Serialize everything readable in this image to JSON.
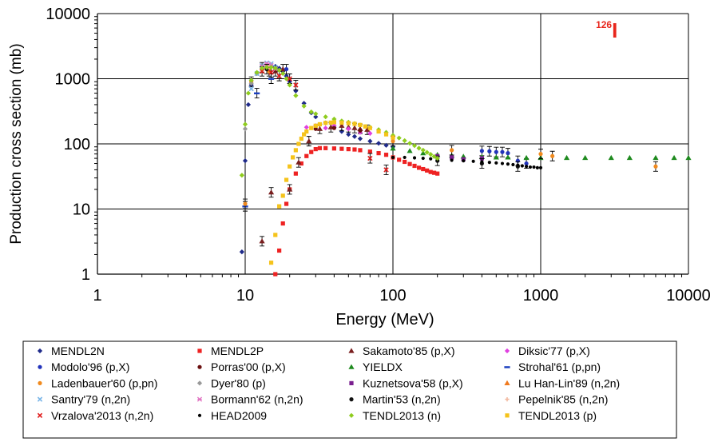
{
  "chart_data": {
    "type": "scatter",
    "title": "",
    "annotation": {
      "mass": "126",
      "element": "I",
      "color": "#e8261c"
    },
    "xlabel": "Energy (MeV)",
    "ylabel": "Production cross section (mb)",
    "xscale": "log",
    "yscale": "log",
    "xlim": [
      1,
      10000
    ],
    "ylim": [
      1,
      10000
    ],
    "grid": true,
    "legend_position": "bottom",
    "x_ticks": [
      "1",
      "10",
      "100",
      "1000",
      "10000"
    ],
    "y_ticks": [
      "1",
      "10",
      "100",
      "1000",
      "10000"
    ],
    "series": [
      {
        "name": "MENDL2N",
        "color": "#1f2a8a",
        "marker": "diamond",
        "x": [
          9.5,
          10,
          10.5,
          11,
          12,
          13,
          14,
          15,
          16,
          17,
          18,
          19,
          20,
          22,
          25,
          28,
          30,
          35,
          40,
          45,
          50,
          55,
          60,
          70,
          80,
          90,
          100
        ],
        "y": [
          2.2,
          55,
          400,
          800,
          1200,
          1500,
          1600,
          1600,
          1550,
          1450,
          1300,
          1100,
          900,
          650,
          420,
          300,
          260,
          210,
          180,
          155,
          140,
          130,
          120,
          110,
          102,
          95,
          90
        ]
      },
      {
        "name": "MENDL2P",
        "color": "#ee2222",
        "marker": "square",
        "x": [
          16,
          17,
          18,
          19,
          20,
          22,
          24,
          26,
          28,
          30,
          32,
          35,
          40,
          45,
          50,
          55,
          60,
          70,
          80,
          90,
          100,
          110,
          120,
          130,
          140,
          150,
          160,
          170,
          180,
          190,
          200
        ],
        "y": [
          1,
          2.3,
          6,
          12,
          20,
          35,
          50,
          65,
          75,
          83,
          86,
          86,
          85,
          84,
          83,
          82,
          80,
          76,
          72,
          68,
          62,
          57,
          53,
          49,
          46,
          43,
          41,
          39,
          37,
          36,
          35
        ]
      },
      {
        "name": "Sakamoto'85 (p,X)",
        "color": "#7a1f1f",
        "marker": "triangle",
        "x": [
          13,
          15,
          16,
          18,
          20,
          23,
          27,
          32,
          38,
          45,
          50,
          55,
          60,
          67
        ],
        "y": [
          3.2,
          18,
          1300,
          1400,
          20,
          52,
          110,
          170,
          180,
          190,
          180,
          175,
          170,
          165
        ]
      },
      {
        "name": "Diksic'77 (p,X)",
        "color": "#e040e0",
        "marker": "diamond",
        "x": [
          26,
          30,
          35,
          40,
          50,
          60,
          70
        ],
        "y": [
          180,
          190,
          175,
          190,
          170,
          150,
          145
        ]
      },
      {
        "name": "Modolo'96 (p,X)",
        "color": "#2233bb",
        "marker": "circle",
        "x": [
          19,
          400,
          450,
          500,
          550,
          600,
          700,
          800
        ],
        "y": [
          1400,
          78,
          77,
          75,
          75,
          72,
          55,
          50
        ]
      },
      {
        "name": "Porras'00 (p,X)",
        "color": "#6a0f0f",
        "marker": "circle",
        "x": [
          16,
          30,
          40,
          60
        ],
        "y": [
          1350,
          170,
          175,
          160
        ]
      },
      {
        "name": "YIELDX",
        "color": "#1e8a1e",
        "marker": "triangle",
        "x": [
          100,
          130,
          160,
          200,
          250,
          300,
          400,
          500,
          600,
          800,
          1000,
          1500,
          2000,
          3000,
          4000,
          6000,
          8000,
          10000
        ],
        "y": [
          85,
          78,
          72,
          68,
          66,
          64,
          63,
          62,
          62,
          61,
          61,
          61,
          61,
          61,
          61,
          61,
          61,
          61
        ]
      },
      {
        "name": "Strohal'61 (p,pn)",
        "color": "#1a3fbf",
        "marker": "dash",
        "x": [
          10,
          12,
          15
        ],
        "y": [
          11,
          600,
          1000
        ]
      },
      {
        "name": "Ladenbauer'60 (p,pn)",
        "color": "#f08a1e",
        "marker": "circle",
        "x": [
          10,
          11,
          13,
          14.5,
          100,
          250,
          1000,
          1200,
          6000
        ],
        "y": [
          12,
          900,
          1500,
          1300,
          110,
          80,
          70,
          65,
          45
        ]
      },
      {
        "name": "Dyer'80 (p)",
        "color": "#999999",
        "marker": "diamond",
        "x": [
          10,
          11,
          12
        ],
        "y": [
          170,
          850,
          1200
        ]
      },
      {
        "name": "Kuznetsova'58 (p,X)",
        "color": "#7a1f8f",
        "marker": "square",
        "x": [
          200,
          250,
          300,
          400
        ],
        "y": [
          65,
          62,
          58,
          60
        ]
      },
      {
        "name": "Lu Han-Lin'89 (n,2n)",
        "color": "#f07a1e",
        "marker": "triangle",
        "x": [
          14,
          14.5
        ],
        "y": [
          1550,
          1450
        ]
      },
      {
        "name": "Santry'79 (n,2n)",
        "color": "#7ab6e8",
        "marker": "x",
        "x": [
          11,
          12,
          13,
          14,
          15,
          16
        ],
        "y": [
          700,
          1200,
          1600,
          1750,
          1700,
          1500
        ]
      },
      {
        "name": "Bormann'62 (n,2n)",
        "color": "#e070c0",
        "marker": "star",
        "x": [
          13,
          14,
          14.5,
          15,
          16
        ],
        "y": [
          1550,
          1700,
          1650,
          1600,
          1400
        ]
      },
      {
        "name": "Martin'53 (n,2n)",
        "color": "#111111",
        "marker": "circle",
        "x": [
          14,
          200,
          400,
          700
        ],
        "y": [
          1400,
          55,
          50,
          45
        ]
      },
      {
        "name": "Pepelnik'85 (n,2n)",
        "color": "#f2b9a0",
        "marker": "plus",
        "x": [
          14,
          14.5
        ],
        "y": [
          1500,
          1500
        ]
      },
      {
        "name": "Vrzalova'2013 (n,2n)",
        "color": "#e01a1a",
        "marker": "x",
        "x": [
          13,
          15,
          17,
          20,
          22,
          70,
          90
        ],
        "y": [
          1300,
          1250,
          1100,
          1000,
          800,
          60,
          40
        ]
      },
      {
        "name": "HEAD2009",
        "color": "#000000",
        "marker": "dot",
        "x": [
          100,
          120,
          140,
          160,
          180,
          200,
          250,
          300,
          350,
          400,
          450,
          500,
          550,
          600,
          650,
          700,
          750,
          800,
          850,
          900,
          950,
          1000
        ],
        "y": [
          62,
          62,
          61,
          60,
          59,
          58,
          56,
          55,
          54,
          53,
          52,
          51,
          50,
          49,
          48,
          47,
          46,
          45,
          44,
          44,
          43,
          43
        ]
      },
      {
        "name": "TENDL2013 (n)",
        "color": "#8fcc1e",
        "marker": "diamond",
        "x": [
          9.5,
          10,
          10.5,
          11,
          12,
          13,
          14,
          15,
          16,
          17,
          18,
          19,
          20,
          22,
          25,
          28,
          30,
          35,
          40,
          45,
          50,
          55,
          60,
          70,
          80,
          90,
          100,
          110,
          120,
          130,
          140,
          150,
          160,
          170,
          180,
          190,
          200
        ],
        "y": [
          33,
          200,
          600,
          950,
          1250,
          1450,
          1500,
          1500,
          1450,
          1350,
          1200,
          1000,
          800,
          550,
          380,
          310,
          290,
          260,
          240,
          225,
          215,
          205,
          195,
          180,
          165,
          150,
          135,
          123,
          112,
          102,
          94,
          86,
          80,
          74,
          69,
          64,
          60
        ]
      },
      {
        "name": "TENDL2013 (p)",
        "color": "#f5c31b",
        "marker": "square",
        "x": [
          15,
          16,
          17,
          18,
          19,
          20,
          21,
          22,
          23,
          24,
          25,
          26,
          28,
          30,
          32,
          35,
          38,
          40,
          45,
          50,
          55,
          60,
          65,
          70,
          80,
          90,
          100
        ],
        "y": [
          1.5,
          4,
          11,
          16,
          28,
          45,
          62,
          80,
          100,
          120,
          140,
          155,
          175,
          190,
          200,
          210,
          212,
          215,
          212,
          208,
          203,
          195,
          185,
          175,
          155,
          140,
          125
        ]
      }
    ]
  }
}
